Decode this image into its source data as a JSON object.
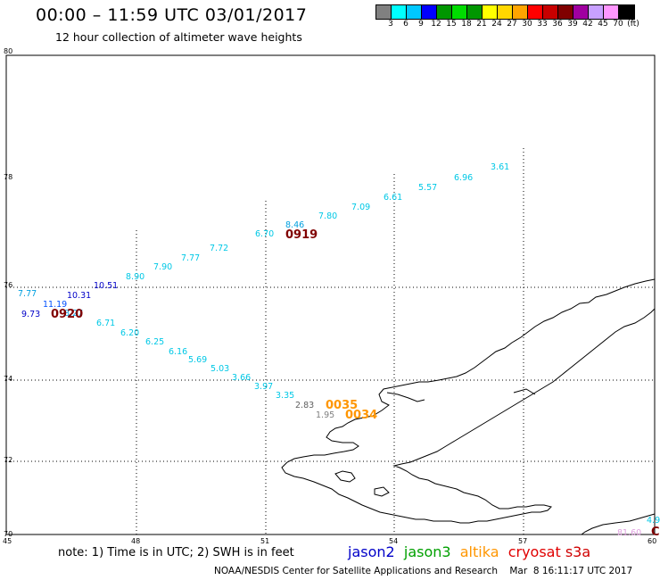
{
  "header": {
    "title": "00:00 – 11:59 UTC 03/01/2017",
    "subtitle": "12 hour collection of altimeter wave heights"
  },
  "color_scale": {
    "colors": [
      "#808080",
      "#00ffff",
      "#00c8ff",
      "#0000ff",
      "#009600",
      "#00dc00",
      "#009600",
      "#ffff00",
      "#ffd700",
      "#ffa500",
      "#ff0000",
      "#c80000",
      "#800000",
      "#a000a0",
      "#c8a0ff",
      "#ff96ff",
      "#000000"
    ],
    "labels": [
      "3",
      "6",
      "9",
      "12",
      "15",
      "18",
      "21",
      "24",
      "27",
      "30",
      "33",
      "36",
      "39",
      "42",
      "45",
      "70",
      "(ft)"
    ]
  },
  "axes": {
    "lat_labels": [
      "80",
      "78",
      "76",
      "74",
      "72",
      "70"
    ],
    "lon_labels": [
      "45",
      "48",
      "51",
      "54",
      "57",
      "60"
    ]
  },
  "map_values": [
    {
      "text": "3.61",
      "color": "#00c8e6"
    },
    {
      "text": "6.96",
      "color": "#00c8e6"
    },
    {
      "text": "5.57",
      "color": "#00c8e6"
    },
    {
      "text": "6.61",
      "color": "#00c8e6"
    },
    {
      "text": "7.09",
      "color": "#00c8e6"
    },
    {
      "text": "7.80",
      "color": "#00c8e6"
    },
    {
      "text": "8.46",
      "color": "#00a0e0"
    },
    {
      "text": "6.70",
      "color": "#00c8e6"
    },
    {
      "text": "7.72",
      "color": "#00c8e6"
    },
    {
      "text": "7.77",
      "color": "#00c8e6"
    },
    {
      "text": "7.90",
      "color": "#00c8e6"
    },
    {
      "text": "8.90",
      "color": "#00c8e6"
    },
    {
      "text": "10.51",
      "color": "#0000c8"
    },
    {
      "text": "10.31",
      "color": "#0000c8"
    },
    {
      "text": "7.77",
      "color": "#00a0e0"
    },
    {
      "text": "11.19",
      "color": "#0050ff"
    },
    {
      "text": "9.73",
      "color": "#0000c8"
    },
    {
      "text": "8.27",
      "color": "#00a0e0"
    },
    {
      "text": "6.71",
      "color": "#00c8e6"
    },
    {
      "text": "6.20",
      "color": "#00c8e6"
    },
    {
      "text": "6.25",
      "color": "#00c8e6"
    },
    {
      "text": "6.16",
      "color": "#00c8e6"
    },
    {
      "text": "5.69",
      "color": "#00c8e6"
    },
    {
      "text": "5.03",
      "color": "#00c8e6"
    },
    {
      "text": "3.66",
      "color": "#00c8e6"
    },
    {
      "text": "3.97",
      "color": "#00c8e6"
    },
    {
      "text": "3.35",
      "color": "#00c8e6"
    },
    {
      "text": "2.83",
      "color": "#606060"
    },
    {
      "text": "1.95",
      "color": "#808080"
    },
    {
      "text": "4.9",
      "color": "#00c8e6"
    },
    {
      "text": "81.60",
      "color": "#e0a0e0"
    }
  ],
  "pass_labels": [
    {
      "text": "0919",
      "color": "#800000"
    },
    {
      "text": "0920",
      "color": "#800000"
    },
    {
      "text": "0035",
      "color": "#ff9600"
    },
    {
      "text": "0034",
      "color": "#ff9600"
    },
    {
      "text": "C",
      "color": "#800000"
    }
  ],
  "note": "note: 1) Time is in UTC; 2) SWH is in feet",
  "satellites": [
    {
      "name": "jason2",
      "color": "#0000c8"
    },
    {
      "name": "jason3",
      "color": "#00a000"
    },
    {
      "name": "altika",
      "color": "#ff9600"
    },
    {
      "name": "cryosat",
      "color": "#e00000"
    },
    {
      "name": "s3a",
      "color": "#d00000"
    }
  ],
  "footer": "NOAA/NESDIS Center for Satellite Applications and Research    Mar  8 16:11:17 UTC 2017"
}
